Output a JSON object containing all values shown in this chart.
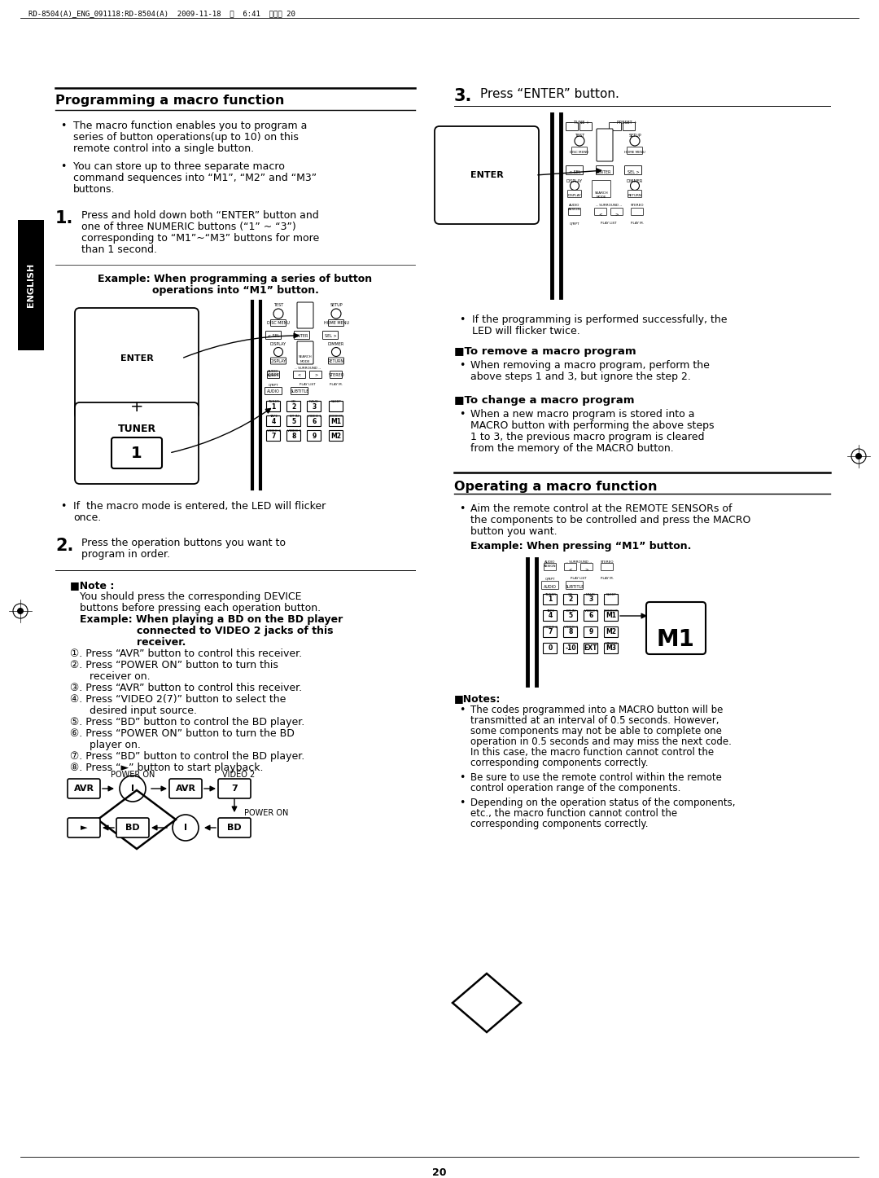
{
  "title_text": "RD-8504(A)_ENG_091118:RD-8504(A)  2009-11-18  오  6:41  페이지 20",
  "section1_title": "Programming a macro function",
  "section2_title": "Operating a macro function",
  "english_label": "ENGLISH",
  "page_num": "20",
  "bg_color": "#ffffff"
}
